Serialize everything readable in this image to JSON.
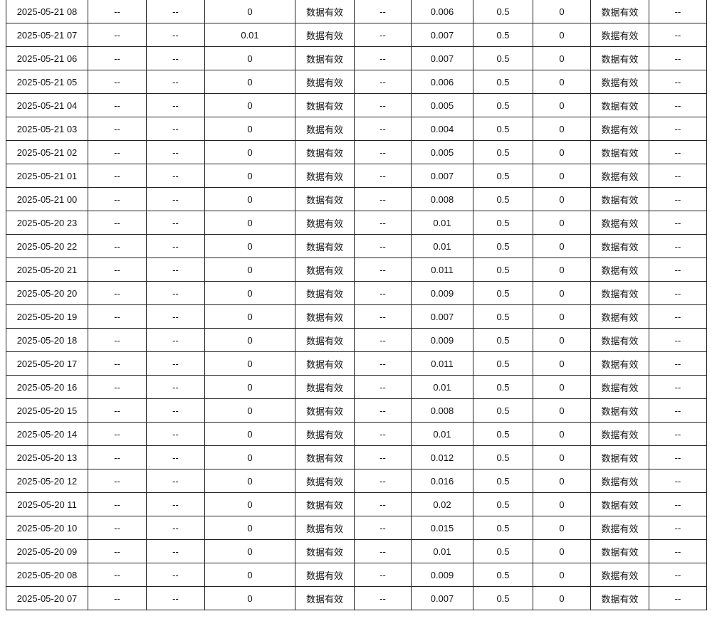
{
  "table": {
    "rows": [
      [
        "2025-05-21 08",
        "--",
        "--",
        "0",
        "数据有效",
        "--",
        "0.006",
        "0.5",
        "0",
        "数据有效",
        "--"
      ],
      [
        "2025-05-21 07",
        "--",
        "--",
        "0.01",
        "数据有效",
        "--",
        "0.007",
        "0.5",
        "0",
        "数据有效",
        "--"
      ],
      [
        "2025-05-21 06",
        "--",
        "--",
        "0",
        "数据有效",
        "--",
        "0.007",
        "0.5",
        "0",
        "数据有效",
        "--"
      ],
      [
        "2025-05-21 05",
        "--",
        "--",
        "0",
        "数据有效",
        "--",
        "0.006",
        "0.5",
        "0",
        "数据有效",
        "--"
      ],
      [
        "2025-05-21 04",
        "--",
        "--",
        "0",
        "数据有效",
        "--",
        "0.005",
        "0.5",
        "0",
        "数据有效",
        "--"
      ],
      [
        "2025-05-21 03",
        "--",
        "--",
        "0",
        "数据有效",
        "--",
        "0.004",
        "0.5",
        "0",
        "数据有效",
        "--"
      ],
      [
        "2025-05-21 02",
        "--",
        "--",
        "0",
        "数据有效",
        "--",
        "0.005",
        "0.5",
        "0",
        "数据有效",
        "--"
      ],
      [
        "2025-05-21 01",
        "--",
        "--",
        "0",
        "数据有效",
        "--",
        "0.007",
        "0.5",
        "0",
        "数据有效",
        "--"
      ],
      [
        "2025-05-21 00",
        "--",
        "--",
        "0",
        "数据有效",
        "--",
        "0.008",
        "0.5",
        "0",
        "数据有效",
        "--"
      ],
      [
        "2025-05-20 23",
        "--",
        "--",
        "0",
        "数据有效",
        "--",
        "0.01",
        "0.5",
        "0",
        "数据有效",
        "--"
      ],
      [
        "2025-05-20 22",
        "--",
        "--",
        "0",
        "数据有效",
        "--",
        "0.01",
        "0.5",
        "0",
        "数据有效",
        "--"
      ],
      [
        "2025-05-20 21",
        "--",
        "--",
        "0",
        "数据有效",
        "--",
        "0.011",
        "0.5",
        "0",
        "数据有效",
        "--"
      ],
      [
        "2025-05-20 20",
        "--",
        "--",
        "0",
        "数据有效",
        "--",
        "0.009",
        "0.5",
        "0",
        "数据有效",
        "--"
      ],
      [
        "2025-05-20 19",
        "--",
        "--",
        "0",
        "数据有效",
        "--",
        "0.007",
        "0.5",
        "0",
        "数据有效",
        "--"
      ],
      [
        "2025-05-20 18",
        "--",
        "--",
        "0",
        "数据有效",
        "--",
        "0.009",
        "0.5",
        "0",
        "数据有效",
        "--"
      ],
      [
        "2025-05-20 17",
        "--",
        "--",
        "0",
        "数据有效",
        "--",
        "0.011",
        "0.5",
        "0",
        "数据有效",
        "--"
      ],
      [
        "2025-05-20 16",
        "--",
        "--",
        "0",
        "数据有效",
        "--",
        "0.01",
        "0.5",
        "0",
        "数据有效",
        "--"
      ],
      [
        "2025-05-20 15",
        "--",
        "--",
        "0",
        "数据有效",
        "--",
        "0.008",
        "0.5",
        "0",
        "数据有效",
        "--"
      ],
      [
        "2025-05-20 14",
        "--",
        "--",
        "0",
        "数据有效",
        "--",
        "0.01",
        "0.5",
        "0",
        "数据有效",
        "--"
      ],
      [
        "2025-05-20 13",
        "--",
        "--",
        "0",
        "数据有效",
        "--",
        "0.012",
        "0.5",
        "0",
        "数据有效",
        "--"
      ],
      [
        "2025-05-20 12",
        "--",
        "--",
        "0",
        "数据有效",
        "--",
        "0.016",
        "0.5",
        "0",
        "数据有效",
        "--"
      ],
      [
        "2025-05-20 11",
        "--",
        "--",
        "0",
        "数据有效",
        "--",
        "0.02",
        "0.5",
        "0",
        "数据有效",
        "--"
      ],
      [
        "2025-05-20 10",
        "--",
        "--",
        "0",
        "数据有效",
        "--",
        "0.015",
        "0.5",
        "0",
        "数据有效",
        "--"
      ],
      [
        "2025-05-20 09",
        "--",
        "--",
        "0",
        "数据有效",
        "--",
        "0.01",
        "0.5",
        "0",
        "数据有效",
        "--"
      ],
      [
        "2025-05-20 08",
        "--",
        "--",
        "0",
        "数据有效",
        "--",
        "0.009",
        "0.5",
        "0",
        "数据有效",
        "--"
      ],
      [
        "2025-05-20 07",
        "--",
        "--",
        "0",
        "数据有效",
        "--",
        "0.007",
        "0.5",
        "0",
        "数据有效",
        "--"
      ]
    ]
  }
}
